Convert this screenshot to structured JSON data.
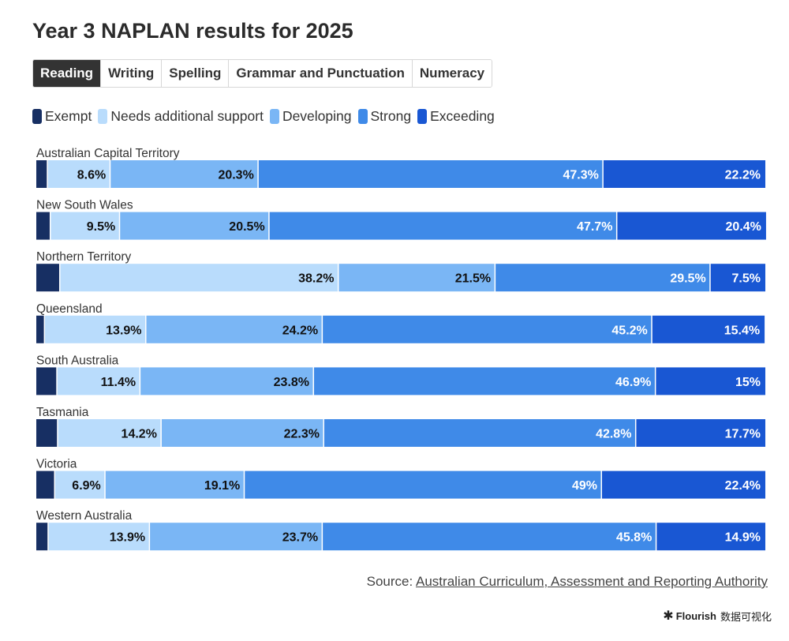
{
  "title": "Year 3 NAPLAN results for 2025",
  "tabs": [
    {
      "label": "Reading",
      "active": true
    },
    {
      "label": "Writing",
      "active": false
    },
    {
      "label": "Spelling",
      "active": false
    },
    {
      "label": "Grammar and Punctuation",
      "active": false
    },
    {
      "label": "Numeracy",
      "active": false
    }
  ],
  "legend": [
    {
      "label": "Exempt",
      "color": "#172f63"
    },
    {
      "label": "Needs additional support",
      "color": "#b9dcfc"
    },
    {
      "label": "Developing",
      "color": "#7ab6f5"
    },
    {
      "label": "Strong",
      "color": "#3f8ae8"
    },
    {
      "label": "Exceeding",
      "color": "#1957d3"
    }
  ],
  "chart_data": {
    "type": "bar",
    "orientation": "horizontal",
    "stacked": true,
    "categories": [
      "Australian Capital Territory",
      "New South Wales",
      "Northern Territory",
      "Queensland",
      "South Australia",
      "Tasmania",
      "Victoria",
      "Western Australia"
    ],
    "series": [
      {
        "name": "Exempt",
        "values": [
          1.6,
          2.0,
          3.3,
          1.2,
          2.9,
          3.0,
          2.6,
          1.7
        ],
        "labels": [
          "",
          "",
          "",
          "",
          "",
          "",
          "",
          ""
        ]
      },
      {
        "name": "Needs additional support",
        "values": [
          8.6,
          9.5,
          38.2,
          13.9,
          11.4,
          14.2,
          6.9,
          13.9
        ],
        "labels": [
          "8.6%",
          "9.5%",
          "38.2%",
          "13.9%",
          "11.4%",
          "14.2%",
          "6.9%",
          "13.9%"
        ]
      },
      {
        "name": "Developing",
        "values": [
          20.3,
          20.5,
          21.5,
          24.2,
          23.8,
          22.3,
          19.1,
          23.7
        ],
        "labels": [
          "20.3%",
          "20.5%",
          "21.5%",
          "24.2%",
          "23.8%",
          "22.3%",
          "19.1%",
          "23.7%"
        ]
      },
      {
        "name": "Strong",
        "values": [
          47.3,
          47.7,
          29.5,
          45.2,
          46.9,
          42.8,
          49,
          45.8
        ],
        "labels": [
          "47.3%",
          "47.7%",
          "29.5%",
          "45.2%",
          "46.9%",
          "42.8%",
          "49%",
          "45.8%"
        ]
      },
      {
        "name": "Exceeding",
        "values": [
          22.2,
          20.4,
          7.5,
          15.4,
          15,
          17.7,
          22.4,
          14.9
        ],
        "labels": [
          "22.2%",
          "20.4%",
          "7.5%",
          "15.4%",
          "15%",
          "17.7%",
          "22.4%",
          "14.9%"
        ]
      }
    ],
    "xlim": [
      0,
      100
    ],
    "legend_position": "top-left",
    "grid": false
  },
  "source": {
    "prefix": "Source: ",
    "link_text": "Australian Curriculum, Assessment and Reporting Authority"
  },
  "footer": {
    "brand": "Flourish",
    "suffix": "数据可视化"
  }
}
